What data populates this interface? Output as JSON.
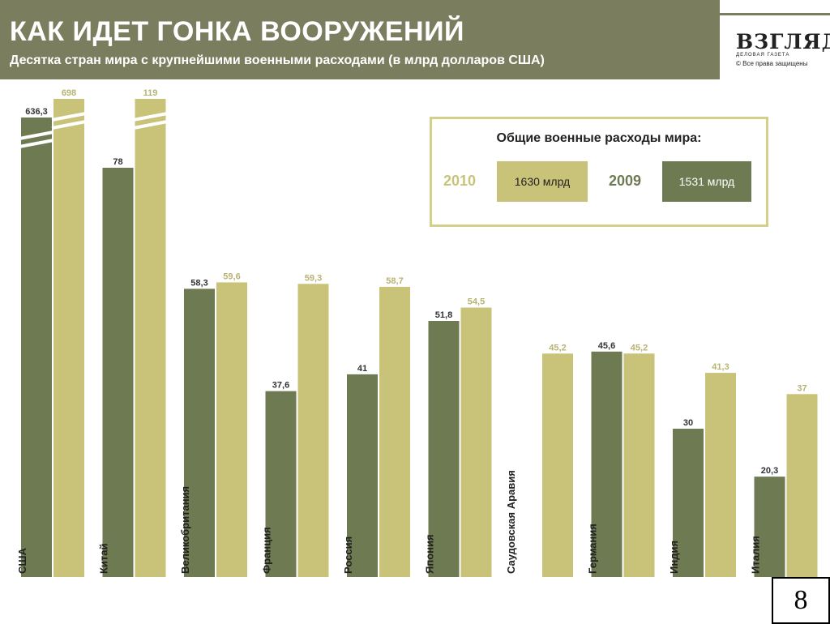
{
  "header": {
    "title": "КАК ИДЕТ ГОНКА ВООРУЖЕНИЙ",
    "subtitle": "Десятка стран мира с крупнейшими военными расходами (в млрд долларов США)"
  },
  "logo": {
    "name": "ВЗГЛЯД",
    "tagline": "деловая газета",
    "rights": "© Все права защищены"
  },
  "legend": {
    "title": "Общие военные расходы мира:",
    "year_2010": "2010",
    "value_2010": "1630 млрд",
    "year_2009": "2009",
    "value_2009": "1531 млрд"
  },
  "colors": {
    "series_2009": "#6e7a52",
    "series_2010": "#c9c37a",
    "header_bg": "#7a7d5e",
    "legend_border": "#d4cf8a"
  },
  "chart_data": {
    "type": "bar",
    "title": "КАК ИДЕТ ГОНКА ВООРУЖЕНИЙ",
    "subtitle": "Десятка стран мира с крупнейшими военными расходами (в млрд долларов США)",
    "xlabel": "",
    "ylabel": "млрд долларов США",
    "categories": [
      "США",
      "Китай",
      "Великобритания",
      "Франция",
      "Россия",
      "Япония",
      "Саудовская Аравия",
      "Германия",
      "Индия",
      "Италия"
    ],
    "series": [
      {
        "name": "2009",
        "values": [
          636.3,
          78,
          58.3,
          37.6,
          41,
          51.8,
          null,
          45.6,
          30,
          20.3
        ]
      },
      {
        "name": "2010",
        "values": [
          698,
          119,
          59.6,
          59.3,
          58.7,
          54.5,
          45.2,
          45.2,
          41.3,
          37
        ]
      }
    ],
    "value_labels": {
      "2009": [
        "636,3",
        "78",
        "58,3",
        "37,6",
        "41",
        "51,8",
        "",
        "45,6",
        "30",
        "20,3"
      ],
      "2010": [
        "698",
        "119",
        "59,6",
        "59,3",
        "58,7",
        "54,5",
        "45,2",
        "45,2",
        "41,3",
        "37"
      ]
    },
    "axis_breaks": [
      "США",
      "Китай"
    ],
    "legend_position": "top-right",
    "grid": false
  },
  "page_number": "8"
}
